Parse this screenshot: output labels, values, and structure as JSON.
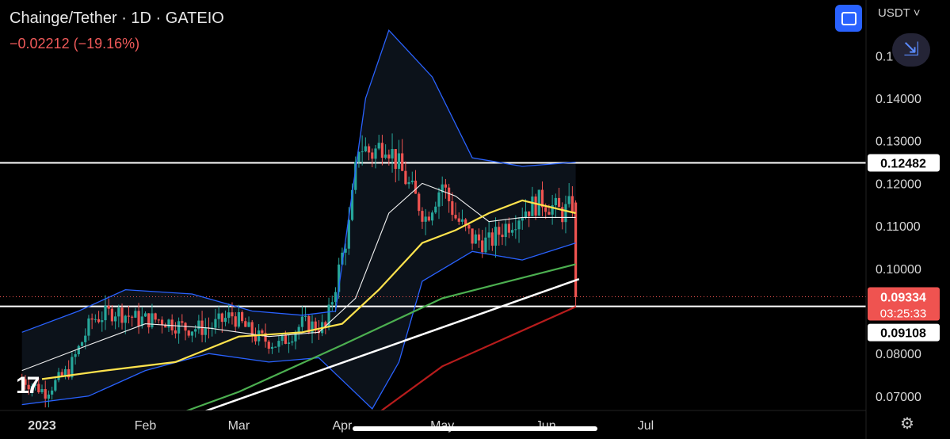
{
  "header": {
    "title": "Chainge/Tether · 1D · GATEIO",
    "change": "−0.02212 (−19.16%)",
    "currency": "USDT",
    "currency_icon": "chevron-down-icon",
    "expand_icon": "fullscreen-icon",
    "collapse_icon": "collapse-arrows-icon",
    "collapse_glyph": "⇲"
  },
  "footer": {
    "settings_icon": "gear-icon",
    "settings_glyph": "⚙",
    "logo_glyph": "17"
  },
  "colors": {
    "up": "#26a69a",
    "down": "#ef5350",
    "bb_upper_lower": "#2962ff",
    "bb_basis": "#f0f0f0",
    "ma_yellow": "#ffe34d",
    "ma_green": "#4caf50",
    "ma_red": "#b71c1c"
  },
  "chart_data": {
    "type": "candlestick",
    "title": "Chainge/Tether · 1D · GATEIO",
    "x_axis_labels": [
      {
        "label": "2023",
        "date": "2023-01-01"
      },
      {
        "label": "Feb",
        "date": "2023-02-01"
      },
      {
        "label": "Mar",
        "date": "2023-03-01"
      },
      {
        "label": "Apr",
        "date": "2023-04-01"
      },
      {
        "label": "May",
        "date": "2023-05-01"
      },
      {
        "label": "Jun",
        "date": "2023-06-01"
      },
      {
        "label": "Jul",
        "date": "2023-07-01"
      }
    ],
    "y_axis_ticks": [
      "0.14000",
      "0.13000",
      "0.12000",
      "0.11000",
      "0.10000",
      "0.08000",
      "0.07000"
    ],
    "y_axis_values": [
      0.14,
      0.13,
      0.12,
      0.11,
      0.1,
      0.08,
      0.07
    ],
    "y_axis_partial_label": "0.1",
    "ylim": [
      0.0655,
      0.1605
    ],
    "price_labels": {
      "level_high": "0.12482",
      "current": "0.09334",
      "countdown": "03:25:33",
      "level_low": "0.09108"
    },
    "horizontal_levels": [
      0.12482,
      0.09108
    ],
    "current_price": 0.09334,
    "anchors": [
      [
        "2022-12-26",
        0.074
      ],
      [
        "2023-01-02",
        0.071
      ],
      [
        "2023-01-09",
        0.076
      ],
      [
        "2023-01-16",
        0.088
      ],
      [
        "2023-01-23",
        0.09
      ],
      [
        "2023-01-30",
        0.088
      ],
      [
        "2023-02-06",
        0.088
      ],
      [
        "2023-02-13",
        0.086
      ],
      [
        "2023-02-20",
        0.086
      ],
      [
        "2023-02-27",
        0.089
      ],
      [
        "2023-03-06",
        0.084
      ],
      [
        "2023-03-13",
        0.082
      ],
      [
        "2023-03-20",
        0.087
      ],
      [
        "2023-03-27",
        0.086
      ],
      [
        "2023-04-03",
        0.11
      ],
      [
        "2023-04-06",
        0.129
      ],
      [
        "2023-04-10",
        0.127
      ],
      [
        "2023-04-14",
        0.13
      ],
      [
        "2023-04-20",
        0.121
      ],
      [
        "2023-04-26",
        0.112
      ],
      [
        "2023-05-01",
        0.12
      ],
      [
        "2023-05-05",
        0.112
      ],
      [
        "2023-05-10",
        0.107
      ],
      [
        "2023-05-15",
        0.106
      ],
      [
        "2023-05-20",
        0.11
      ],
      [
        "2023-05-26",
        0.114
      ],
      [
        "2023-05-31",
        0.116
      ],
      [
        "2023-06-06",
        0.113
      ],
      [
        "2023-06-09",
        0.115
      ]
    ],
    "last_candle": {
      "date": "2023-06-10",
      "open": 0.1155,
      "high": 0.116,
      "low": 0.0911,
      "close": 0.0933
    },
    "bollinger": {
      "upper": [
        [
          "2022-12-26",
          0.085
        ],
        [
          "2023-01-12",
          0.09
        ],
        [
          "2023-01-26",
          0.095
        ],
        [
          "2023-02-15",
          0.094
        ],
        [
          "2023-03-05",
          0.09
        ],
        [
          "2023-03-20",
          0.089
        ],
        [
          "2023-03-30",
          0.09
        ],
        [
          "2023-04-08",
          0.14
        ],
        [
          "2023-04-15",
          0.156
        ],
        [
          "2023-04-28",
          0.145
        ],
        [
          "2023-05-10",
          0.126
        ],
        [
          "2023-05-25",
          0.124
        ],
        [
          "2023-06-10",
          0.125
        ]
      ],
      "basis": [
        [
          "2022-12-26",
          0.076
        ],
        [
          "2023-01-15",
          0.082
        ],
        [
          "2023-02-01",
          0.087
        ],
        [
          "2023-02-20",
          0.086
        ],
        [
          "2023-03-10",
          0.084
        ],
        [
          "2023-03-25",
          0.085
        ],
        [
          "2023-04-05",
          0.093
        ],
        [
          "2023-04-15",
          0.113
        ],
        [
          "2023-04-25",
          0.12
        ],
        [
          "2023-05-05",
          0.117
        ],
        [
          "2023-05-15",
          0.111
        ],
        [
          "2023-05-25",
          0.112
        ],
        [
          "2023-06-10",
          0.112
        ]
      ],
      "lower": [
        [
          "2022-12-26",
          0.068
        ],
        [
          "2023-01-15",
          0.07
        ],
        [
          "2023-02-01",
          0.076
        ],
        [
          "2023-02-20",
          0.08
        ],
        [
          "2023-03-10",
          0.078
        ],
        [
          "2023-03-25",
          0.079
        ],
        [
          "2023-04-02",
          0.073
        ],
        [
          "2023-04-10",
          0.067
        ],
        [
          "2023-04-18",
          0.078
        ],
        [
          "2023-04-25",
          0.097
        ],
        [
          "2023-05-10",
          0.104
        ],
        [
          "2023-05-25",
          0.102
        ],
        [
          "2023-06-10",
          0.106
        ]
      ]
    },
    "moving_averages": [
      {
        "color_key": "ma_yellow",
        "points": [
          [
            "2023-01-01",
            0.074
          ],
          [
            "2023-01-20",
            0.076
          ],
          [
            "2023-02-10",
            0.078
          ],
          [
            "2023-03-01",
            0.084
          ],
          [
            "2023-03-20",
            0.085
          ],
          [
            "2023-04-01",
            0.087
          ],
          [
            "2023-04-12",
            0.095
          ],
          [
            "2023-04-25",
            0.106
          ],
          [
            "2023-05-05",
            0.109
          ],
          [
            "2023-05-15",
            0.113
          ],
          [
            "2023-05-25",
            0.116
          ],
          [
            "2023-06-10",
            0.113
          ]
        ]
      },
      {
        "color_key": "ma_green",
        "points": [
          [
            "2023-02-01",
            0.063
          ],
          [
            "2023-03-01",
            0.071
          ],
          [
            "2023-04-01",
            0.082
          ],
          [
            "2023-05-01",
            0.093
          ],
          [
            "2023-06-10",
            0.101
          ]
        ]
      },
      {
        "color_key": "ma_red",
        "points": [
          [
            "2023-03-20",
            0.06
          ],
          [
            "2023-04-10",
            0.065
          ],
          [
            "2023-05-01",
            0.077
          ],
          [
            "2023-06-10",
            0.091
          ]
        ]
      }
    ],
    "trendline": [
      [
        "2023-02-10",
        0.064
      ],
      [
        "2023-06-11",
        0.0975
      ]
    ],
    "y_label": "",
    "x_label": ""
  }
}
